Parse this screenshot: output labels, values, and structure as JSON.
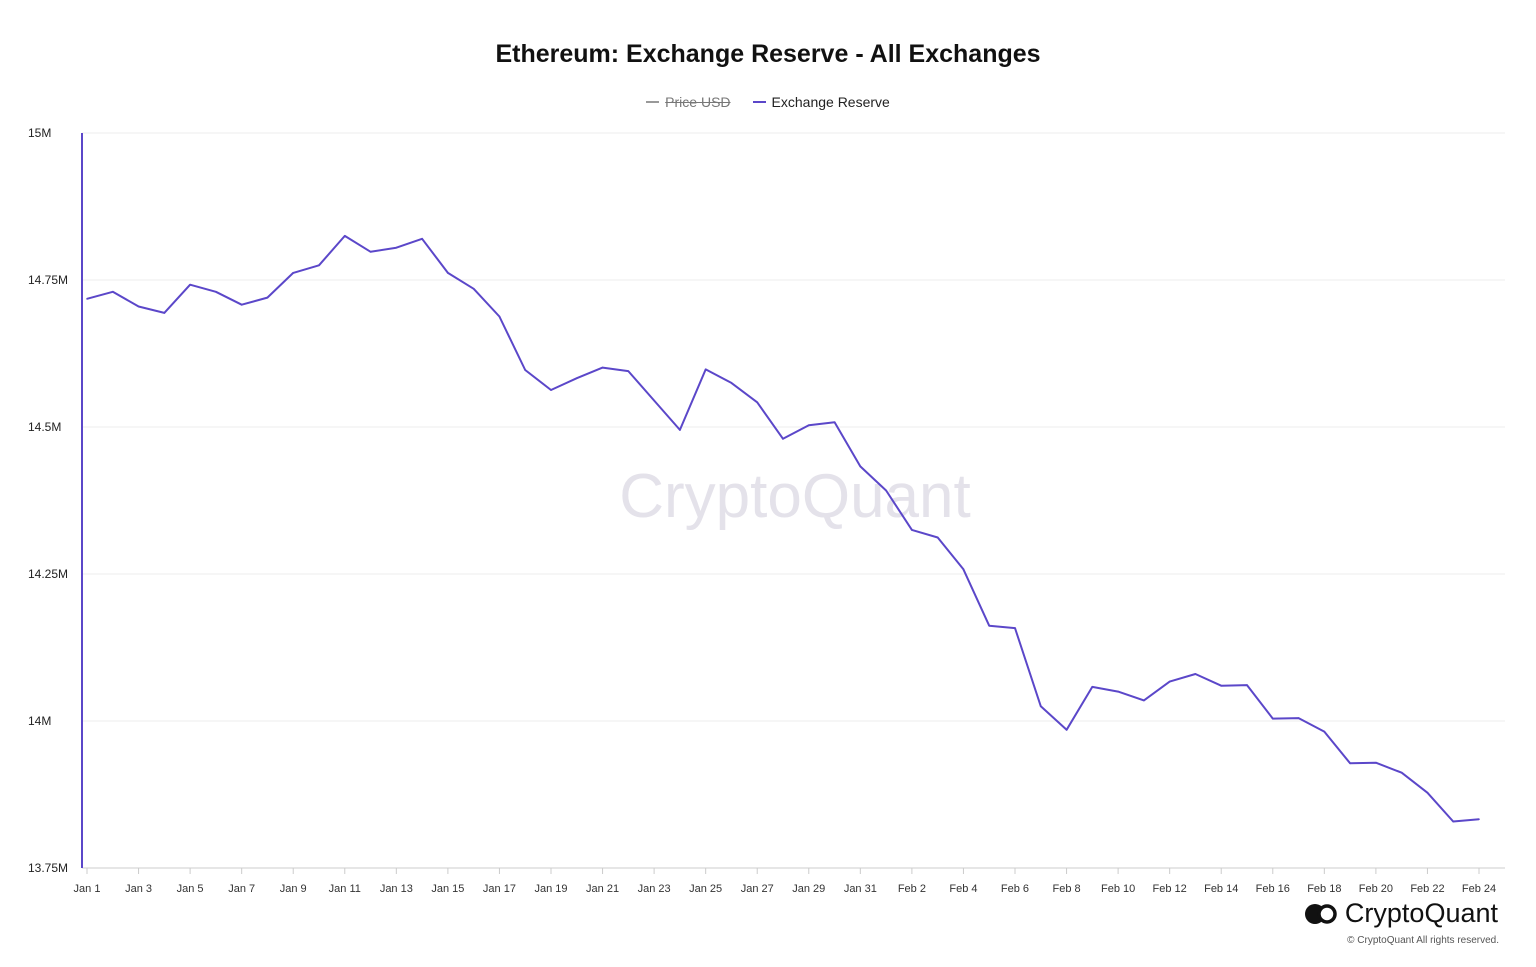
{
  "title": "Ethereum: Exchange Reserve - All Exchanges",
  "legend": [
    {
      "label": "Price USD",
      "color": "#999999",
      "hidden": true
    },
    {
      "label": "Exchange Reserve",
      "color": "#5b47c9",
      "hidden": false
    }
  ],
  "watermark": "CryptoQuant",
  "brand": {
    "name": "CryptoQuant",
    "copyright": "© CryptoQuant All rights reserved."
  },
  "colors": {
    "series": "#5b47c9",
    "grid": "#eeeeee",
    "axis": "#cccccc"
  },
  "chart_data": {
    "type": "line",
    "title": "Ethereum: Exchange Reserve - All Exchanges",
    "xlabel": "",
    "ylabel": "",
    "ylim": [
      13750000,
      15000000
    ],
    "yticks": [
      {
        "value": 15000000,
        "label": "15M"
      },
      {
        "value": 14750000,
        "label": "14.75M"
      },
      {
        "value": 14500000,
        "label": "14.5M"
      },
      {
        "value": 14250000,
        "label": "14.25M"
      },
      {
        "value": 14000000,
        "label": "14M"
      },
      {
        "value": 13750000,
        "label": "13.75M"
      }
    ],
    "x": [
      "Jan 1",
      "Jan 2",
      "Jan 3",
      "Jan 4",
      "Jan 5",
      "Jan 6",
      "Jan 7",
      "Jan 8",
      "Jan 9",
      "Jan 10",
      "Jan 11",
      "Jan 12",
      "Jan 13",
      "Jan 14",
      "Jan 15",
      "Jan 16",
      "Jan 17",
      "Jan 18",
      "Jan 19",
      "Jan 20",
      "Jan 21",
      "Jan 22",
      "Jan 23",
      "Jan 24",
      "Jan 25",
      "Jan 26",
      "Jan 27",
      "Jan 28",
      "Jan 29",
      "Jan 30",
      "Jan 31",
      "Feb 1",
      "Feb 2",
      "Feb 3",
      "Feb 4",
      "Feb 5",
      "Feb 6",
      "Feb 7",
      "Feb 8",
      "Feb 9",
      "Feb 10",
      "Feb 11",
      "Feb 12",
      "Feb 13",
      "Feb 14",
      "Feb 15",
      "Feb 16",
      "Feb 17",
      "Feb 18",
      "Feb 19",
      "Feb 20",
      "Feb 21",
      "Feb 22",
      "Feb 23",
      "Feb 24"
    ],
    "xtick_labels": [
      "Jan 1",
      "Jan 3",
      "Jan 5",
      "Jan 7",
      "Jan 9",
      "Jan 11",
      "Jan 13",
      "Jan 15",
      "Jan 17",
      "Jan 19",
      "Jan 21",
      "Jan 23",
      "Jan 25",
      "Jan 27",
      "Jan 29",
      "Jan 31",
      "Feb 2",
      "Feb 4",
      "Feb 6",
      "Feb 8",
      "Feb 10",
      "Feb 12",
      "Feb 14",
      "Feb 16",
      "Feb 18",
      "Feb 20",
      "Feb 22",
      "Feb 24"
    ],
    "series": [
      {
        "name": "Exchange Reserve",
        "values": [
          14718000,
          14730000,
          14705000,
          14694000,
          14742000,
          14730000,
          14708000,
          14720000,
          14762000,
          14775000,
          14825000,
          14798000,
          14805000,
          14820000,
          14762000,
          14735000,
          14688000,
          14597000,
          14563000,
          14583000,
          14601000,
          14595000,
          14545000,
          14495000,
          14598000,
          14575000,
          14542000,
          14480000,
          14503000,
          14508000,
          14433000,
          14392000,
          14325000,
          14312000,
          14258000,
          14162000,
          14158000,
          14025000,
          13985000,
          14058000,
          14050000,
          14035000,
          14067000,
          14080000,
          14060000,
          14061000,
          14004000,
          14005000,
          13982000,
          13928000,
          13929000,
          13912000,
          13878000,
          13829000,
          13833000
        ]
      }
    ],
    "grid": true,
    "legend_position": "top-center"
  }
}
